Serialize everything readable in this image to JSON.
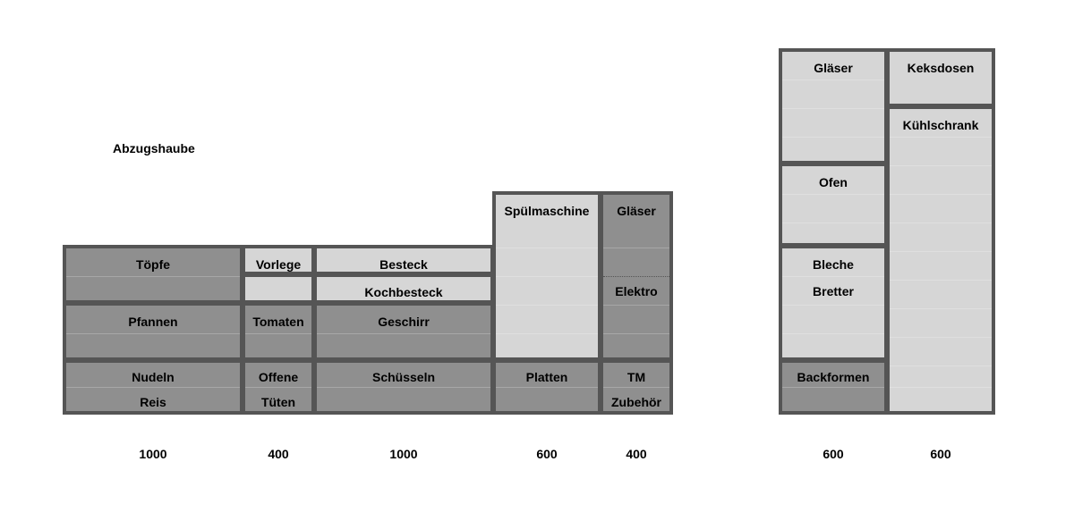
{
  "hood_label": "Abzugshaube",
  "left_block": {
    "col_toepfe": {
      "top_label": "Töpfe",
      "mid_label": "Pfannen",
      "bottom_label_1": "Nudeln",
      "bottom_label_2": "Reis"
    },
    "col_vorlege": {
      "top_label": "Vorlege",
      "mid_label": "Tomaten",
      "bottom_label_1": "Offene",
      "bottom_label_2": "Tüten"
    },
    "col_besteck": {
      "top_label": "Besteck",
      "top2_label": "Kochbesteck",
      "mid_label": "Geschirr",
      "bottom_label": "Schüsseln"
    },
    "col_spuelmaschine": {
      "top_label": "Spülmaschine",
      "bottom_label": "Platten"
    },
    "col_glaeser": {
      "top_label": "Gläser",
      "mid_label": "Elektro",
      "bottom_label_1": "TM",
      "bottom_label_2": "Zubehör"
    }
  },
  "right_block": {
    "col_a": {
      "top_label": "Gläser",
      "ofen_label": "Ofen",
      "bleche_label_1": "Bleche",
      "bleche_label_2": "Bretter",
      "bottom_label": "Backformen"
    },
    "col_b": {
      "top_label": "Keksdosen",
      "main_label": "Kühlschrank"
    }
  },
  "widths": [
    "1000",
    "400",
    "1000",
    "600",
    "400",
    "600",
    "600"
  ],
  "colors": {
    "dark_fill": "#8f8f8f",
    "light_fill": "#d6d6d6",
    "border": "#555555"
  }
}
